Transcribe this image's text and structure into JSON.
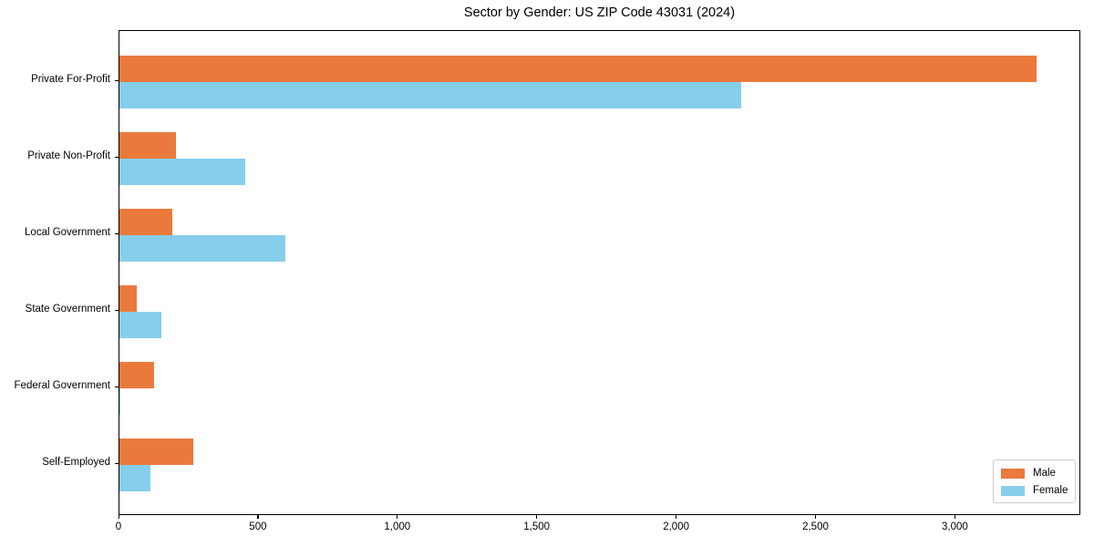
{
  "chart_data": {
    "type": "bar",
    "orientation": "horizontal",
    "title": "Sector by Gender: US ZIP Code 43031 (2024)",
    "categories": [
      "Private For-Profit",
      "Private Non-Profit",
      "Local Government",
      "State Government",
      "Federal Government",
      "Self-Employed"
    ],
    "series": [
      {
        "name": "Male",
        "color": "#EA793C",
        "values": [
          3290,
          203,
          190,
          62,
          124,
          265
        ]
      },
      {
        "name": "Female",
        "color": "#87CEEB",
        "values": [
          2230,
          451,
          595,
          150,
          3,
          111
        ]
      }
    ],
    "xlabel": "",
    "ylabel": "",
    "xlim": [
      0,
      3450
    ],
    "xticks": [
      0,
      500,
      1000,
      1500,
      2000,
      2500,
      3000
    ],
    "xtick_labels": [
      "0",
      "500",
      "1,000",
      "1,500",
      "2,000",
      "2,500",
      "3,000"
    ],
    "legend_position": "lower-right",
    "grid": false,
    "background_color": "#ffffff",
    "axis_color": "#000000"
  }
}
